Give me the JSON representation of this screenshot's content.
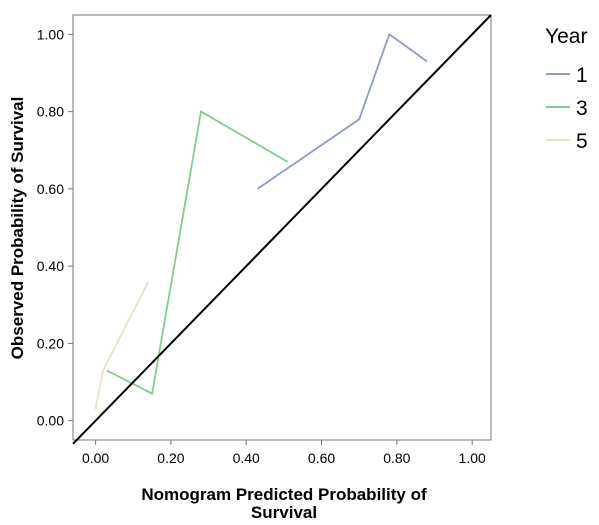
{
  "chart_data": {
    "type": "line",
    "xlabel_lines": [
      "Nomogram Predicted Probability of",
      "Survival"
    ],
    "ylabel": "Observed Probability of Survival",
    "xlim": [
      -0.06,
      1.05
    ],
    "ylim": [
      -0.05,
      1.05
    ],
    "xticks": [
      "0.00",
      "0.20",
      "0.40",
      "0.60",
      "0.80",
      "1.00"
    ],
    "yticks": [
      "0.00",
      "0.20",
      "0.40",
      "0.60",
      "0.80",
      "1.00"
    ],
    "legend": {
      "title": "Year",
      "position": "right"
    },
    "series": [
      {
        "name": "1",
        "color": "#8e9dc4",
        "points": [
          [
            0.43,
            0.6
          ],
          [
            0.7,
            0.78
          ],
          [
            0.78,
            1.0
          ],
          [
            0.88,
            0.93
          ]
        ]
      },
      {
        "name": "3",
        "color": "#7fd08a",
        "points": [
          [
            0.03,
            0.13
          ],
          [
            0.15,
            0.07
          ],
          [
            0.28,
            0.8
          ],
          [
            0.51,
            0.67
          ]
        ]
      },
      {
        "name": "5",
        "color": "#e2e4c2",
        "points": [
          [
            0.0,
            0.03
          ],
          [
            0.02,
            0.13
          ],
          [
            0.14,
            0.36
          ]
        ]
      }
    ],
    "reference_line": {
      "color": "#000000",
      "from": [
        -0.06,
        -0.06
      ],
      "to": [
        1.05,
        1.05
      ]
    }
  }
}
